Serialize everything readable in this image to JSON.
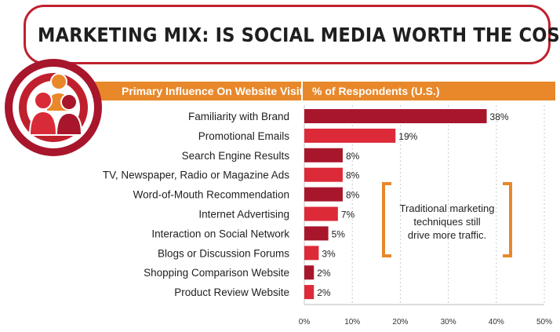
{
  "title": "MARKETING MIX: IS SOCIAL MEDIA WORTH THE COST?",
  "header": {
    "left": "Primary Influence On Website Visit",
    "right": "% of Respondents (U.S.)"
  },
  "callout": {
    "line1": "Traditional marketing",
    "line2": "techniques still",
    "line3": "drive more traffic."
  },
  "colors": {
    "dark_red": "#a8162c",
    "red": "#dd2a38",
    "orange": "#e8882a",
    "title_border": "#c0202d"
  },
  "icon": "people-target-icon",
  "chart_data": {
    "type": "bar",
    "orientation": "horizontal",
    "categories": [
      "Familiarity with Brand",
      "Promotional Emails",
      "Search Engine Results",
      "TV, Newspaper, Radio or Magazine Ads",
      "Word-of-Mouth Recommendation",
      "Internet Advertising",
      "Interaction on Social Network",
      "Blogs or Discussion Forums",
      "Shopping Comparison Website",
      "Product Review Website"
    ],
    "values": [
      38,
      19,
      8,
      8,
      8,
      7,
      5,
      3,
      2,
      2
    ],
    "value_labels": [
      "38%",
      "19%",
      "8%",
      "8%",
      "8%",
      "7%",
      "5%",
      "3%",
      "2%",
      "2%"
    ],
    "xlim": [
      0,
      50
    ],
    "ticks": [
      "0%",
      "10%",
      "20%",
      "30%",
      "40%",
      "50%"
    ],
    "tick_values": [
      0,
      10,
      20,
      30,
      40,
      50
    ],
    "grid": true
  }
}
